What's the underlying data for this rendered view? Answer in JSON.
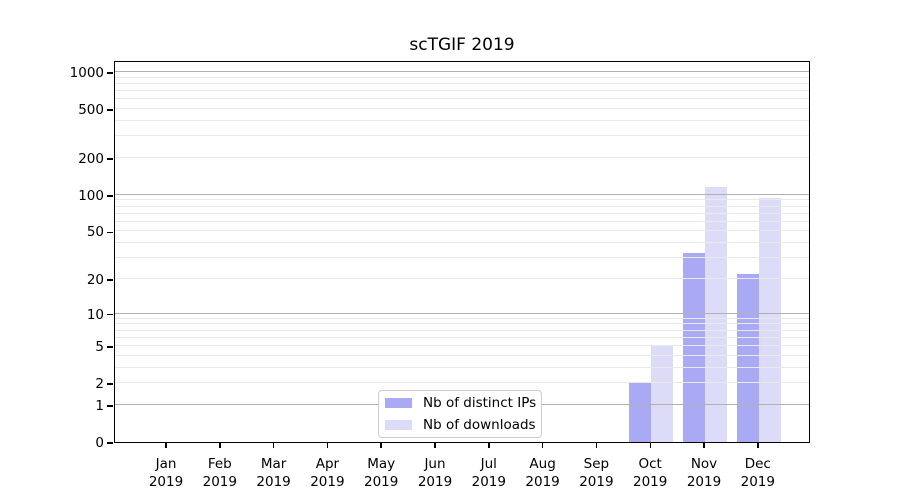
{
  "title": "scTGIF 2019",
  "legend": {
    "items": [
      {
        "label": "Nb of distinct IPs",
        "color": "#a9a9f4"
      },
      {
        "label": "Nb of downloads",
        "color": "#dcdcf8"
      }
    ]
  },
  "colors": {
    "distinct_ips_bar": "#a9a9f4",
    "downloads_bar": "#dcdcf8",
    "major_gridline": "#b0b0b0",
    "minor_gridline": "#e9e9e9",
    "axis": "#000000",
    "legend_border": "#cccccc"
  },
  "chart_data": {
    "type": "bar",
    "title": "scTGIF 2019",
    "xlabel": "",
    "ylabel": "",
    "yscale": "log10(value+1)",
    "ylim": [
      0,
      1250
    ],
    "grid": true,
    "legend_position": "bottom-center-inside",
    "categories": [
      "Jan 2019",
      "Feb 2019",
      "Mar 2019",
      "Apr 2019",
      "May 2019",
      "Jun 2019",
      "Jul 2019",
      "Aug 2019",
      "Sep 2019",
      "Oct 2019",
      "Nov 2019",
      "Dec 2019"
    ],
    "series": [
      {
        "name": "Nb of distinct IPs",
        "slug": "distinct-ips",
        "color": "#a9a9f4",
        "values": [
          0,
          0,
          0,
          0,
          0,
          0,
          0,
          0,
          0,
          2,
          33,
          22
        ]
      },
      {
        "name": "Nb of downloads",
        "slug": "downloads",
        "color": "#dcdcf8",
        "values": [
          0,
          0,
          0,
          0,
          0,
          0,
          0,
          0,
          0,
          5,
          117,
          94
        ]
      }
    ],
    "y_ticks": [
      0,
      1,
      2,
      5,
      10,
      20,
      50,
      100,
      200,
      500,
      1000
    ],
    "y_major_gridlines": [
      1,
      10,
      100,
      1000
    ],
    "y_minor_gridlines": [
      2,
      3,
      4,
      5,
      6,
      7,
      8,
      9,
      20,
      30,
      40,
      50,
      60,
      70,
      80,
      90,
      200,
      300,
      400,
      500,
      600,
      700,
      800,
      900
    ]
  }
}
